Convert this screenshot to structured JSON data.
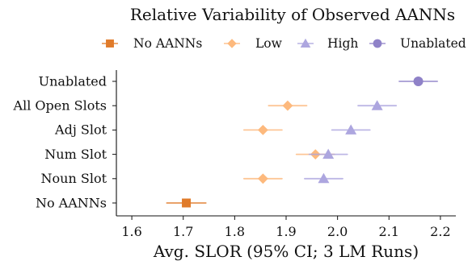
{
  "chart_data": {
    "type": "scatter",
    "title": "Relative Variability of Observed AANNs",
    "xlabel": "Avg. SLOR (95% CI; 3 LM Runs)",
    "ylabel": "",
    "xlim": [
      1.57,
      2.23
    ],
    "xticks": [
      "1.6",
      "1.7",
      "1.8",
      "1.9",
      "2.0",
      "2.1",
      "2.2"
    ],
    "categories": [
      "Unablated",
      "All Open Slots",
      "Adj Slot",
      "Num Slot",
      "Noun Slot",
      "No AANNs"
    ],
    "grid": false,
    "legend_placement": "top",
    "series": [
      {
        "name": "No AANNs",
        "color": "#E07B2A",
        "marker": "square",
        "points": [
          {
            "category": "No AANNs",
            "x": 1.706,
            "ci": [
              1.668,
              1.744
            ]
          }
        ]
      },
      {
        "name": "Low",
        "color": "#FDB97D",
        "marker": "diamond",
        "points": [
          {
            "category": "All Open Slots",
            "x": 1.903,
            "ci": [
              1.866,
              1.94
            ]
          },
          {
            "category": "Adj Slot",
            "x": 1.855,
            "ci": [
              1.818,
              1.892
            ]
          },
          {
            "category": "Num Slot",
            "x": 1.957,
            "ci": [
              1.92,
              1.994
            ]
          },
          {
            "category": "Noun Slot",
            "x": 1.855,
            "ci": [
              1.818,
              1.892
            ]
          }
        ]
      },
      {
        "name": "High",
        "color": "#ADA6DF",
        "marker": "triangle",
        "points": [
          {
            "category": "All Open Slots",
            "x": 2.077,
            "ci": [
              2.04,
              2.114
            ]
          },
          {
            "category": "Adj Slot",
            "x": 2.026,
            "ci": [
              1.989,
              2.063
            ]
          },
          {
            "category": "Num Slot",
            "x": 1.982,
            "ci": [
              1.945,
              2.019
            ]
          },
          {
            "category": "Noun Slot",
            "x": 1.973,
            "ci": [
              1.936,
              2.01
            ]
          }
        ]
      },
      {
        "name": "Unablated",
        "color": "#8F82C8",
        "marker": "circle",
        "points": [
          {
            "category": "Unablated",
            "x": 2.157,
            "ci": [
              2.12,
              2.194
            ]
          }
        ]
      }
    ]
  }
}
